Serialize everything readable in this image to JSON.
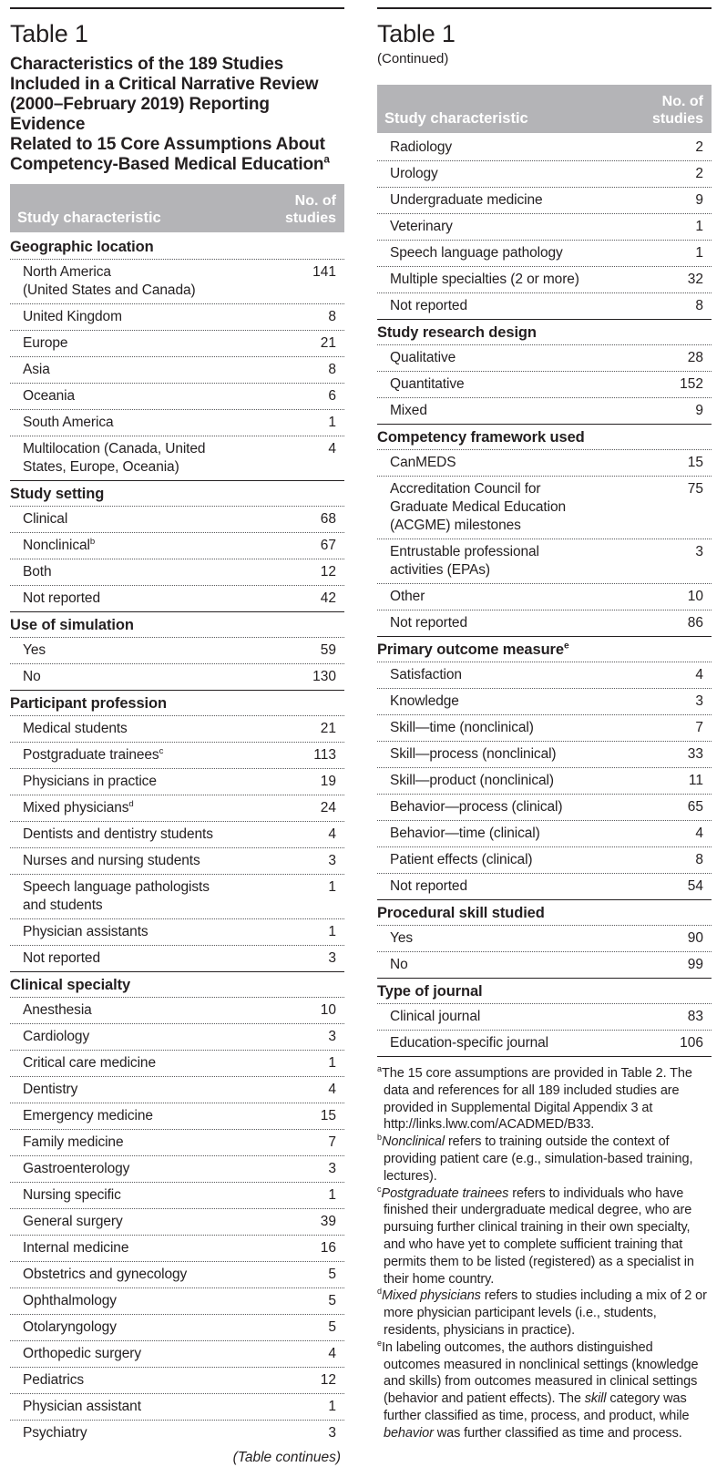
{
  "colors": {
    "header_band_bg": "#b4b4b7",
    "header_band_text": "#ffffff",
    "text": "#231f20",
    "dotted_rule": "#57585a"
  },
  "header": {
    "characteristic": "Study characteristic",
    "no_of": "No. of",
    "studies": "studies"
  },
  "left": {
    "table_label": "Table 1",
    "title": "Characteristics of the 189 Studies\nIncluded in a Critical Narrative Review\n(2000–February 2019) Reporting Evidence\nRelated to 15 Core Assumptions About\nCompetency-Based Medical Education",
    "title_sup": "a",
    "continues_note": "(Table continues)",
    "sections": [
      {
        "title": "Geographic location",
        "rows": [
          {
            "label": "North America\n(United States and Canada)",
            "value": "141"
          },
          {
            "label": "United Kingdom",
            "value": "8"
          },
          {
            "label": "Europe",
            "value": "21"
          },
          {
            "label": "Asia",
            "value": "8"
          },
          {
            "label": "Oceania",
            "value": "6"
          },
          {
            "label": "South America",
            "value": "1"
          },
          {
            "label": "Multilocation (Canada, United\nStates, Europe, Oceania)",
            "value": "4"
          }
        ]
      },
      {
        "title": "Study setting",
        "rows": [
          {
            "label": "Clinical",
            "value": "68"
          },
          {
            "label": "Nonclinical",
            "sup": "b",
            "value": "67"
          },
          {
            "label": "Both",
            "value": "12"
          },
          {
            "label": "Not reported",
            "value": "42"
          }
        ]
      },
      {
        "title": "Use of simulation",
        "rows": [
          {
            "label": "Yes",
            "value": "59"
          },
          {
            "label": "No",
            "value": "130"
          }
        ]
      },
      {
        "title": "Participant profession",
        "rows": [
          {
            "label": "Medical students",
            "value": "21"
          },
          {
            "label": "Postgraduate trainees",
            "sup": "c",
            "value": "113"
          },
          {
            "label": "Physicians in practice",
            "value": "19"
          },
          {
            "label": "Mixed physicians",
            "sup": "d",
            "value": "24"
          },
          {
            "label": "Dentists and dentistry students",
            "value": "4"
          },
          {
            "label": "Nurses and nursing students",
            "value": "3"
          },
          {
            "label": "Speech language pathologists\nand students",
            "value": "1"
          },
          {
            "label": "Physician assistants",
            "value": "1"
          },
          {
            "label": "Not reported",
            "value": "3"
          }
        ]
      },
      {
        "title": "Clinical specialty",
        "rows": [
          {
            "label": "Anesthesia",
            "value": "10"
          },
          {
            "label": "Cardiology",
            "value": "3"
          },
          {
            "label": "Critical care medicine",
            "value": "1"
          },
          {
            "label": "Dentistry",
            "value": "4"
          },
          {
            "label": "Emergency medicine",
            "value": "15"
          },
          {
            "label": "Family medicine",
            "value": "7"
          },
          {
            "label": "Gastroenterology",
            "value": "3"
          },
          {
            "label": "Nursing specific",
            "value": "1"
          },
          {
            "label": "General surgery",
            "value": "39"
          },
          {
            "label": "Internal medicine",
            "value": "16"
          },
          {
            "label": "Obstetrics and gynecology",
            "value": "5"
          },
          {
            "label": "Ophthalmology",
            "value": "5"
          },
          {
            "label": "Otolaryngology",
            "value": "5"
          },
          {
            "label": "Orthopedic surgery",
            "value": "4"
          },
          {
            "label": "Pediatrics",
            "value": "12"
          },
          {
            "label": "Physician assistant",
            "value": "1"
          },
          {
            "label": "Psychiatry",
            "value": "3"
          }
        ]
      }
    ]
  },
  "right": {
    "table_label": "Table 1",
    "continued_label": "(Continued)",
    "sections": [
      {
        "title": "",
        "rows": [
          {
            "label": "Radiology",
            "value": "2"
          },
          {
            "label": "Urology",
            "value": "2"
          },
          {
            "label": "Undergraduate medicine",
            "value": "9"
          },
          {
            "label": "Veterinary",
            "value": "1"
          },
          {
            "label": "Speech language pathology",
            "value": "1"
          },
          {
            "label": "Multiple specialties (2 or more)",
            "value": "32"
          },
          {
            "label": "Not reported",
            "value": "8"
          }
        ]
      },
      {
        "title": "Study research design",
        "rows": [
          {
            "label": "Qualitative",
            "value": "28"
          },
          {
            "label": "Quantitative",
            "value": "152"
          },
          {
            "label": "Mixed",
            "value": "9"
          }
        ]
      },
      {
        "title": "Competency framework used",
        "rows": [
          {
            "label": "CanMEDS",
            "value": "15"
          },
          {
            "label": "Accreditation Council for\nGraduate Medical Education\n(ACGME) milestones",
            "value": "75"
          },
          {
            "label": "Entrustable professional\nactivities (EPAs)",
            "value": "3"
          },
          {
            "label": "Other",
            "value": "10"
          },
          {
            "label": "Not reported",
            "value": "86"
          }
        ]
      },
      {
        "title": "Primary outcome measure",
        "title_sup": "e",
        "rows": [
          {
            "label": "Satisfaction",
            "value": "4"
          },
          {
            "label": "Knowledge",
            "value": "3"
          },
          {
            "label": "Skill—time (nonclinical)",
            "value": "7"
          },
          {
            "label": "Skill—process (nonclinical)",
            "value": "33"
          },
          {
            "label": "Skill—product (nonclinical)",
            "value": "11"
          },
          {
            "label": "Behavior—process (clinical)",
            "value": "65"
          },
          {
            "label": "Behavior—time (clinical)",
            "value": "4"
          },
          {
            "label": "Patient effects (clinical)",
            "value": "8"
          },
          {
            "label": "Not reported",
            "value": "54"
          }
        ]
      },
      {
        "title": "Procedural skill studied",
        "rows": [
          {
            "label": "Yes",
            "value": "90"
          },
          {
            "label": "No",
            "value": "99"
          }
        ]
      },
      {
        "title": "Type of journal",
        "rows": [
          {
            "label": "Clinical journal",
            "value": "83"
          },
          {
            "label": "Education-specific journal",
            "value": "106"
          }
        ]
      }
    ],
    "footnotes": [
      {
        "sup": "a",
        "segments": [
          {
            "text": "The 15 core assumptions are provided in Table 2. The data and references for all 189 included studies are provided in Supplemental Digital Appendix 3 at http://links.lww.com/ACADMED/B33."
          }
        ]
      },
      {
        "sup": "b",
        "segments": [
          {
            "text": "Nonclinical",
            "italic": true
          },
          {
            "text": " refers to training outside the context of providing patient care (e.g., simulation-based training, lectures)."
          }
        ]
      },
      {
        "sup": "c",
        "segments": [
          {
            "text": "Postgraduate trainees",
            "italic": true
          },
          {
            "text": " refers to individuals who have finished their undergraduate medical degree, who are pursuing further clinical training in their own specialty, and who have yet to complete sufficient training that permits them to be listed (registered) as a specialist in their home country."
          }
        ]
      },
      {
        "sup": "d",
        "segments": [
          {
            "text": "Mixed physicians",
            "italic": true
          },
          {
            "text": " refers to studies including a mix of 2 or more physician participant levels (i.e., students, residents, physicians in practice)."
          }
        ]
      },
      {
        "sup": "e",
        "segments": [
          {
            "text": "In labeling outcomes, the authors distinguished outcomes measured in nonclinical settings (knowledge and skills) from outcomes measured in clinical settings (behavior and patient effects). The "
          },
          {
            "text": "skill",
            "italic": true
          },
          {
            "text": " category was further classified as time, process, and product, while "
          },
          {
            "text": "behavior",
            "italic": true
          },
          {
            "text": " was further classified as time and process."
          }
        ]
      }
    ]
  }
}
